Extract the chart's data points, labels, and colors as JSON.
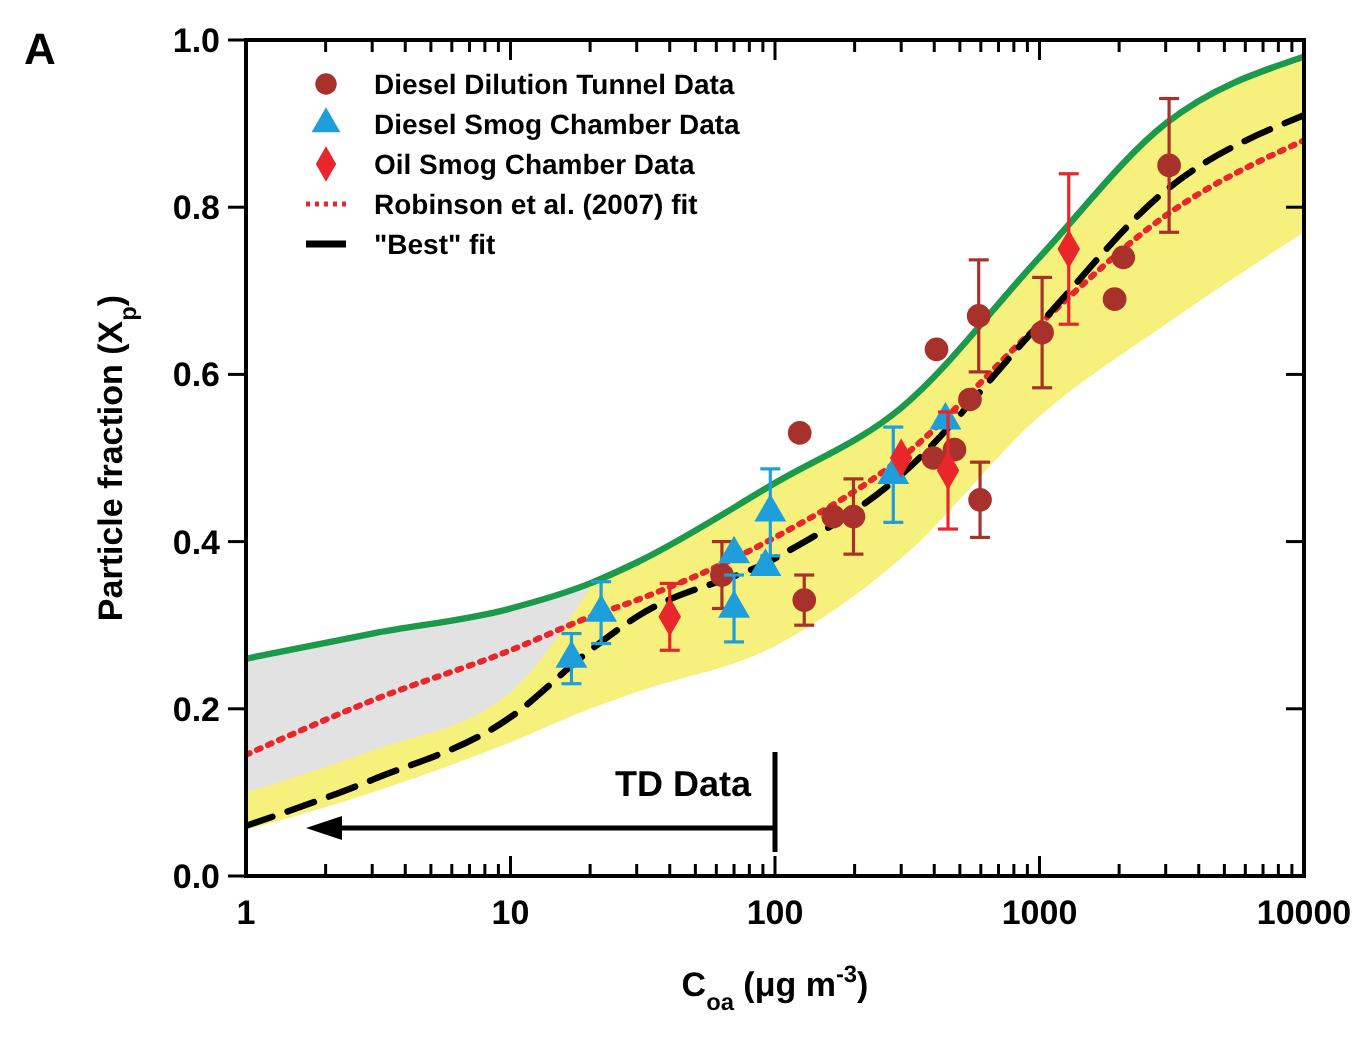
{
  "chart_data": {
    "type": "scatter",
    "xlabel": "C$_{oa}$ (μg m$^{-3}$)",
    "ylabel": "Particle fraction (X$_{p}$)",
    "log": "x",
    "xlim": [
      1,
      10000
    ],
    "ylim": [
      0,
      1
    ],
    "xticks": [
      1,
      {
        "value": 2,
        "label": null
      },
      {
        "value": 3,
        "label": null
      },
      {
        "value": 4,
        "label": null
      },
      {
        "value": 5,
        "label": null
      },
      {
        "value": 6,
        "label": null
      },
      {
        "value": 7,
        "label": null
      },
      {
        "value": 8,
        "label": null
      },
      {
        "value": 9,
        "label": null
      },
      10,
      {
        "value": 20,
        "label": null
      },
      {
        "value": 30,
        "label": null
      },
      {
        "value": 40,
        "label": null
      },
      {
        "value": 50,
        "label": null
      },
      {
        "value": 60,
        "label": null
      },
      {
        "value": 70,
        "label": null
      },
      {
        "value": 80,
        "label": null
      },
      {
        "value": 90,
        "label": null
      },
      100,
      {
        "value": 200,
        "label": null
      },
      {
        "value": 300,
        "label": null
      },
      {
        "value": 400,
        "label": null
      },
      {
        "value": 500,
        "label": null
      },
      {
        "value": 600,
        "label": null
      },
      {
        "value": 700,
        "label": null
      },
      {
        "value": 800,
        "label": null
      },
      {
        "value": 900,
        "label": null
      },
      1000,
      {
        "value": 2000,
        "label": null
      },
      {
        "value": 3000,
        "label": null
      },
      {
        "value": 4000,
        "label": null
      },
      {
        "value": 5000,
        "label": null
      },
      {
        "value": 6000,
        "label": null
      },
      {
        "value": 7000,
        "label": null
      },
      {
        "value": 8000,
        "label": null
      },
      {
        "value": 9000,
        "label": null
      },
      10000
    ],
    "yticks": [
      {
        "value": 0,
        "label": "0.0"
      },
      {
        "value": 0.2,
        "label": "0.2"
      },
      {
        "value": 0.4,
        "label": "0.4"
      },
      {
        "value": 0.6,
        "label": "0.6"
      },
      {
        "value": 0.8,
        "label": "0.8"
      },
      {
        "value": 1,
        "label": "1.0"
      }
    ],
    "grid": false,
    "legend": "top left",
    "annotations": [
      "A",
      "TD Data"
    ],
    "series": [
      {
        "name": "Diesel Dilution Tunnel Data",
        "marker": "circle",
        "color": "#a8322b",
        "x": [
          63,
          124,
          129,
          166,
          198,
          397,
          408,
          477,
          546,
          589,
          596,
          1023,
          1923,
          2074,
          3090
        ],
        "values": [
          0.36,
          0.53,
          0.33,
          0.43,
          0.43,
          0.5,
          0.63,
          0.51,
          0.57,
          0.67,
          0.45,
          0.65,
          0.69,
          0.74,
          0.85
        ],
        "errors": [
          0.04,
          null,
          0.03,
          null,
          0.045,
          null,
          null,
          null,
          null,
          0.067,
          0.045,
          0.066,
          null,
          null,
          0.08
        ]
      },
      {
        "name": "Diesel Smog Chamber Data",
        "marker": "triangle",
        "color": "#1e9fdc",
        "x": [
          17,
          22,
          70,
          70,
          92,
          96,
          280,
          441
        ],
        "values": [
          0.26,
          0.315,
          0.385,
          0.32,
          0.37,
          0.435,
          0.48,
          0.545
        ],
        "errors": [
          0.03,
          0.037,
          null,
          0.04,
          null,
          0.052,
          0.057,
          null
        ]
      },
      {
        "name": "Oil Smog Chamber Data",
        "marker": "diamond",
        "color": "#e8262b",
        "x": [
          40,
          300,
          451,
          1290
        ],
        "values": [
          0.31,
          0.5,
          0.485,
          0.75
        ],
        "errors": [
          0.04,
          null,
          0.07,
          0.09
        ]
      },
      {
        "name": "Robinson et al. (2007) fit",
        "type": "line",
        "marker": "none",
        "line_style": "dotted",
        "color": "#e8262b",
        "x": [
          1,
          3,
          10,
          20,
          30,
          100,
          300,
          1000,
          3000,
          10000
        ],
        "values": [
          0.145,
          0.21,
          0.27,
          0.31,
          0.33,
          0.405,
          0.5,
          0.66,
          0.79,
          0.88
        ],
        "lower": [
          0.1,
          0.15,
          0.22,
          0.345,
          null,
          null,
          null,
          null,
          null,
          null
        ],
        "upper": [
          0.26,
          0.29,
          0.32,
          0.35,
          null,
          null,
          null,
          null,
          null,
          null
        ]
      },
      {
        "name": "\"Best\" fit",
        "type": "line",
        "marker": "none",
        "line_style": "dashed",
        "color": "#000000",
        "x": [
          1,
          3,
          10,
          20,
          30,
          100,
          300,
          1000,
          3000,
          10000
        ],
        "values": [
          0.06,
          0.115,
          0.19,
          0.27,
          0.31,
          0.38,
          0.48,
          0.66,
          0.82,
          0.91
        ],
        "lower": [
          0.055,
          0.1,
          0.16,
          0.2,
          0.22,
          0.275,
          0.38,
          0.55,
          0.66,
          0.77
        ],
        "upper": [
          0.26,
          0.29,
          0.32,
          0.35,
          0.375,
          0.47,
          0.56,
          0.74,
          0.9,
          0.98
        ]
      },
      {
        "type": "line",
        "marker": "none",
        "line_style": "solid",
        "color": "#1a9a4a",
        "x": [
          1,
          3,
          10,
          20,
          30,
          100,
          300,
          1000,
          3000,
          10000
        ],
        "values": [
          0.26,
          0.29,
          0.32,
          0.35,
          0.375,
          0.47,
          0.56,
          0.74,
          0.9,
          0.98
        ]
      }
    ]
  }
}
